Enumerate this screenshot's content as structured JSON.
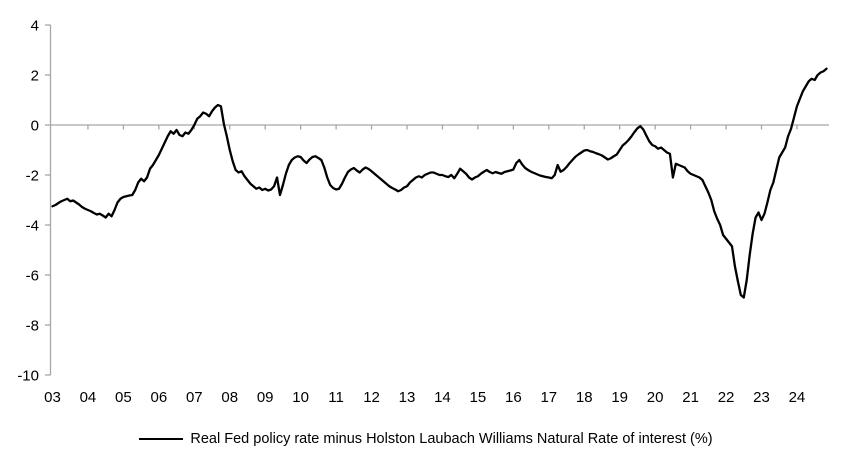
{
  "chart_data": {
    "type": "line",
    "title": "",
    "xlabel": "",
    "ylabel": "",
    "x_axis": {
      "tick_labels": [
        "03",
        "04",
        "05",
        "06",
        "07",
        "08",
        "09",
        "10",
        "11",
        "12",
        "13",
        "14",
        "15",
        "16",
        "17",
        "18",
        "19",
        "20",
        "21",
        "22",
        "23",
        "24"
      ],
      "unit": "year"
    },
    "y_axis": {
      "ticks": [
        4,
        2,
        0,
        -2,
        -4,
        -6,
        -8,
        -10
      ],
      "range": [
        -10,
        4
      ]
    },
    "grid": "horizontal zero line only",
    "legend": {
      "position": "bottom-center",
      "entries": [
        "Real Fed policy rate minus Holston Laubach Williams Natural Rate of interest (%)"
      ]
    },
    "series": [
      {
        "name": "Real Fed policy rate minus Holston Laubach Williams Natural Rate of interest (%)",
        "color": "#000000",
        "frequency": "monthly",
        "x_start": 2003.0,
        "x_end": 2024.833,
        "values": [
          -3.25,
          -3.2,
          -3.12,
          -3.05,
          -3.0,
          -2.95,
          -3.05,
          -3.02,
          -3.1,
          -3.18,
          -3.28,
          -3.35,
          -3.4,
          -3.45,
          -3.52,
          -3.58,
          -3.55,
          -3.62,
          -3.7,
          -3.55,
          -3.65,
          -3.4,
          -3.1,
          -2.95,
          -2.88,
          -2.85,
          -2.82,
          -2.8,
          -2.6,
          -2.3,
          -2.15,
          -2.25,
          -2.1,
          -1.75,
          -1.6,
          -1.4,
          -1.2,
          -0.95,
          -0.7,
          -0.45,
          -0.25,
          -0.35,
          -0.2,
          -0.4,
          -0.45,
          -0.3,
          -0.35,
          -0.2,
          0.0,
          0.25,
          0.35,
          0.5,
          0.45,
          0.35,
          0.55,
          0.7,
          0.8,
          0.75,
          0.05,
          -0.45,
          -1.0,
          -1.45,
          -1.8,
          -1.9,
          -1.85,
          -2.05,
          -2.2,
          -2.35,
          -2.45,
          -2.55,
          -2.5,
          -2.6,
          -2.55,
          -2.62,
          -2.58,
          -2.45,
          -2.1,
          -2.8,
          -2.4,
          -1.95,
          -1.6,
          -1.4,
          -1.3,
          -1.25,
          -1.28,
          -1.42,
          -1.52,
          -1.38,
          -1.28,
          -1.25,
          -1.32,
          -1.4,
          -1.7,
          -2.1,
          -2.4,
          -2.52,
          -2.58,
          -2.55,
          -2.35,
          -2.1,
          -1.88,
          -1.78,
          -1.72,
          -1.82,
          -1.9,
          -1.78,
          -1.7,
          -1.76,
          -1.85,
          -1.95,
          -2.05,
          -2.15,
          -2.25,
          -2.35,
          -2.45,
          -2.52,
          -2.58,
          -2.65,
          -2.6,
          -2.5,
          -2.45,
          -2.3,
          -2.2,
          -2.1,
          -2.05,
          -2.1,
          -2.0,
          -1.95,
          -1.9,
          -1.9,
          -1.95,
          -2.0,
          -2.0,
          -2.05,
          -2.08,
          -2.0,
          -2.13,
          -1.95,
          -1.75,
          -1.85,
          -1.95,
          -2.1,
          -2.18,
          -2.1,
          -2.05,
          -1.95,
          -1.87,
          -1.8,
          -1.88,
          -1.93,
          -1.88,
          -1.92,
          -1.95,
          -1.88,
          -1.85,
          -1.82,
          -1.78,
          -1.52,
          -1.4,
          -1.58,
          -1.72,
          -1.8,
          -1.87,
          -1.92,
          -1.97,
          -2.02,
          -2.05,
          -2.08,
          -2.1,
          -2.13,
          -2.0,
          -1.6,
          -1.87,
          -1.8,
          -1.68,
          -1.53,
          -1.4,
          -1.27,
          -1.18,
          -1.1,
          -1.02,
          -1.0,
          -1.05,
          -1.08,
          -1.13,
          -1.17,
          -1.22,
          -1.3,
          -1.38,
          -1.33,
          -1.25,
          -1.18,
          -1.0,
          -0.82,
          -0.72,
          -0.6,
          -0.45,
          -0.28,
          -0.13,
          -0.05,
          -0.18,
          -0.42,
          -0.65,
          -0.8,
          -0.85,
          -0.95,
          -0.9,
          -1.0,
          -1.1,
          -1.15,
          -2.1,
          -1.55,
          -1.6,
          -1.65,
          -1.7,
          -1.85,
          -1.95,
          -2.0,
          -2.05,
          -2.1,
          -2.2,
          -2.45,
          -2.7,
          -3.0,
          -3.45,
          -3.75,
          -4.0,
          -4.4,
          -4.55,
          -4.7,
          -4.85,
          -5.65,
          -6.25,
          -6.8,
          -6.9,
          -6.2,
          -5.2,
          -4.35,
          -3.7,
          -3.5,
          -3.8,
          -3.55,
          -3.1,
          -2.6,
          -2.3,
          -1.8,
          -1.3,
          -1.1,
          -0.9,
          -0.45,
          -0.15,
          0.3,
          0.75,
          1.05,
          1.35,
          1.55,
          1.75,
          1.85,
          1.8,
          2.0,
          2.1,
          2.15,
          2.25
        ]
      }
    ],
    "colors": {
      "series_line": "#000000",
      "axis_and_grid": "#a6a6a6",
      "text": "#000000",
      "background": "#ffffff"
    }
  }
}
